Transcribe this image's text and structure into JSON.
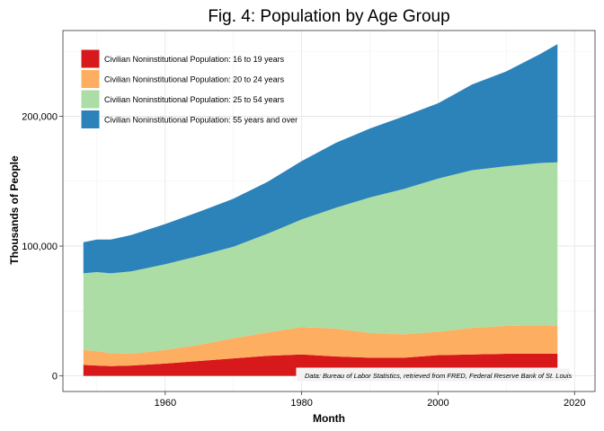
{
  "chart_data": {
    "type": "area",
    "stacked": true,
    "title": "Fig. 4: Population by Age Group",
    "xlabel": "Month",
    "ylabel": "Thousands of People",
    "xlim": [
      1945,
      2023
    ],
    "ylim": [
      -12000,
      266000
    ],
    "x_ticks": [
      1960,
      1980,
      2000,
      2020
    ],
    "y_ticks": [
      0,
      100000,
      200000
    ],
    "y_tick_labels": [
      "0",
      "100,000",
      "200,000"
    ],
    "grid": true,
    "legend_position": "top-left",
    "source_note": "Data: Bureau of Labor Statistics, retrieved from FRED, Federal Reserve Bank of St. Louis",
    "x": [
      1948,
      1950,
      1952,
      1955,
      1960,
      1965,
      1970,
      1975,
      1980,
      1985,
      1990,
      1995,
      2000,
      2005,
      2010,
      2015,
      2017.5
    ],
    "series": [
      {
        "name": "Civilian Noninstitutional Population: 16 to 19 years",
        "color": "#d7191c",
        "values": [
          8500,
          8000,
          7500,
          8000,
          9500,
          11500,
          13500,
          15500,
          16500,
          15000,
          14000,
          14000,
          16000,
          16500,
          17000,
          17000,
          17000
        ]
      },
      {
        "name": "Civilian Noninstitutional Population: 20 to 24 years",
        "color": "#fdae61",
        "values": [
          11500,
          11000,
          10000,
          9000,
          10500,
          12500,
          15500,
          18000,
          21000,
          21500,
          19000,
          18000,
          18000,
          20500,
          21500,
          22000,
          21500
        ]
      },
      {
        "name": "Civilian Noninstitutional Population: 25 to 54 years",
        "color": "#abdda4",
        "values": [
          59000,
          61000,
          61500,
          63500,
          66000,
          68500,
          70500,
          76000,
          83000,
          93000,
          104500,
          112000,
          118000,
          121500,
          123000,
          125000,
          126000
        ]
      },
      {
        "name": "Civilian Noninstitutional Population: 55 years and over",
        "color": "#2b83ba",
        "values": [
          24000,
          25000,
          26000,
          28000,
          31000,
          34000,
          37000,
          40000,
          45000,
          50000,
          53000,
          56000,
          58000,
          66000,
          73000,
          84000,
          91000
        ]
      }
    ]
  }
}
